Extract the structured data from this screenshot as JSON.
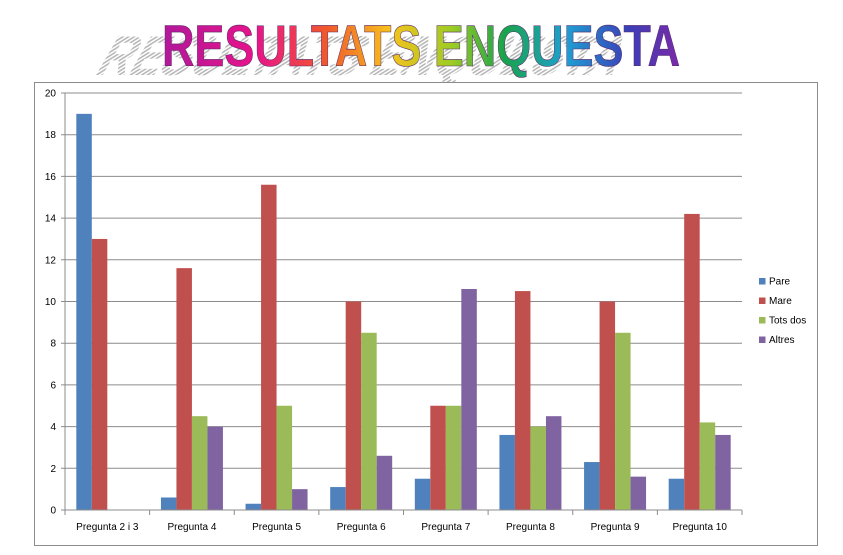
{
  "title": "RESULTATS ENQUESTA",
  "colors": {
    "Pare": "#4f81bd",
    "Mare": "#c0504d",
    "Tots dos": "#9bbb59",
    "Altres": "#8064a2",
    "grid": "#8c8c8c"
  },
  "chart_data": {
    "type": "bar",
    "title": "",
    "xlabel": "",
    "ylabel": "",
    "ylim": [
      0,
      20
    ],
    "yticks": [
      0,
      2,
      4,
      6,
      8,
      10,
      12,
      14,
      16,
      18,
      20
    ],
    "grid": true,
    "legend_position": "right",
    "categories": [
      "Pregunta 2 i 3",
      "Pregunta 4",
      "Pregunta 5",
      "Pregunta 6",
      "Pregunta 7",
      "Pregunta 8",
      "Pregunta 9",
      "Pregunta 10"
    ],
    "series": [
      {
        "name": "Pare",
        "values": [
          19,
          0.6,
          0.3,
          1.1,
          1.5,
          3.6,
          2.3,
          1.5
        ]
      },
      {
        "name": "Mare",
        "values": [
          13,
          11.6,
          15.6,
          10,
          5,
          10.5,
          10,
          14.2
        ]
      },
      {
        "name": "Tots dos",
        "values": [
          0,
          4.5,
          5,
          8.5,
          5,
          4,
          8.5,
          4.2
        ]
      },
      {
        "name": "Altres",
        "values": [
          0,
          4,
          1,
          2.6,
          10.6,
          4.5,
          1.6,
          3.6
        ]
      }
    ]
  }
}
